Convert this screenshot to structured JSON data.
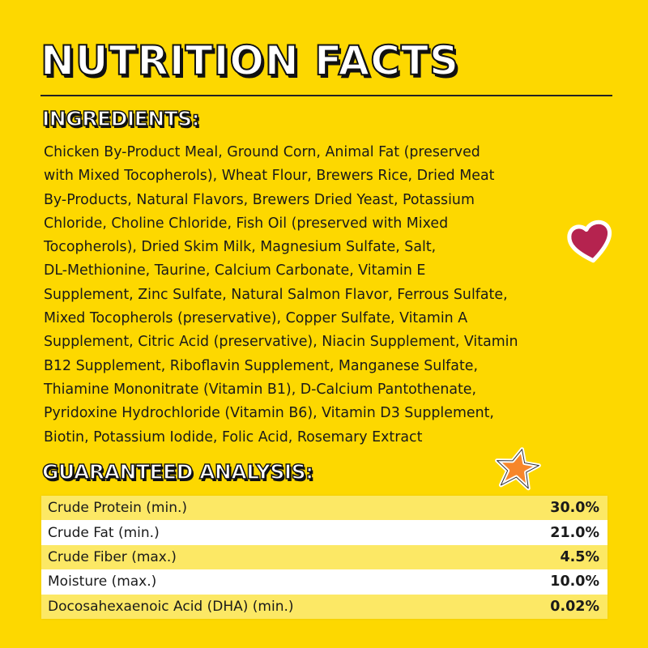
{
  "title": "NUTRITION FACTS",
  "ingredients": {
    "heading": "INGREDIENTS:",
    "lines": [
      "Chicken By-Product Meal, Ground Corn, Animal Fat (preserved",
      "with Mixed Tocopherols), Wheat Flour, Brewers Rice,  Dried Meat",
      "By-Products, Natural Flavors, Brewers Dried Yeast, Potassium",
      "Chloride, Choline Chloride, Fish Oil (preserved with Mixed",
      "Tocopherols), Dried Skim Milk, Magnesium Sulfate, Salt,",
      "DL-Methionine, Taurine, Calcium Carbonate, Vitamin E",
      "Supplement, Zinc Sulfate, Natural Salmon Flavor, Ferrous Sulfate,",
      "Mixed Tocopherols (preservative), Copper Sulfate, Vitamin A",
      "Supplement, Citric Acid (preservative), Niacin Supplement, Vitamin",
      "B12 Supplement, Riboflavin Supplement, Manganese Sulfate,",
      "Thiamine Mononitrate (Vitamin B1), D-Calcium Pantothenate,",
      "Pyridoxine Hydrochloride (Vitamin B6), Vitamin D3 Supplement,",
      "Biotin, Potassium Iodide, Folic Acid, Rosemary Extract"
    ]
  },
  "analysis": {
    "heading": "GUARANTEED ANALYSIS:",
    "rows": [
      {
        "label": "Crude Protein (min.)",
        "value": "30.0%"
      },
      {
        "label": "Crude Fat (min.)",
        "value": "21.0%"
      },
      {
        "label": "Crude Fiber (max.)",
        "value": "4.5%"
      },
      {
        "label": "Moisture (max.)",
        "value": "10.0%"
      },
      {
        "label": "Docosahexaenoic Acid (DHA) (min.)",
        "value": "0.02%"
      }
    ]
  },
  "decorations": {
    "heart": "heart-icon",
    "star": "star-icon",
    "heart_color": "#B5234F",
    "star_color": "#F7862A"
  },
  "colors": {
    "background": "#FDD800",
    "row_alt": "#FCE865"
  }
}
